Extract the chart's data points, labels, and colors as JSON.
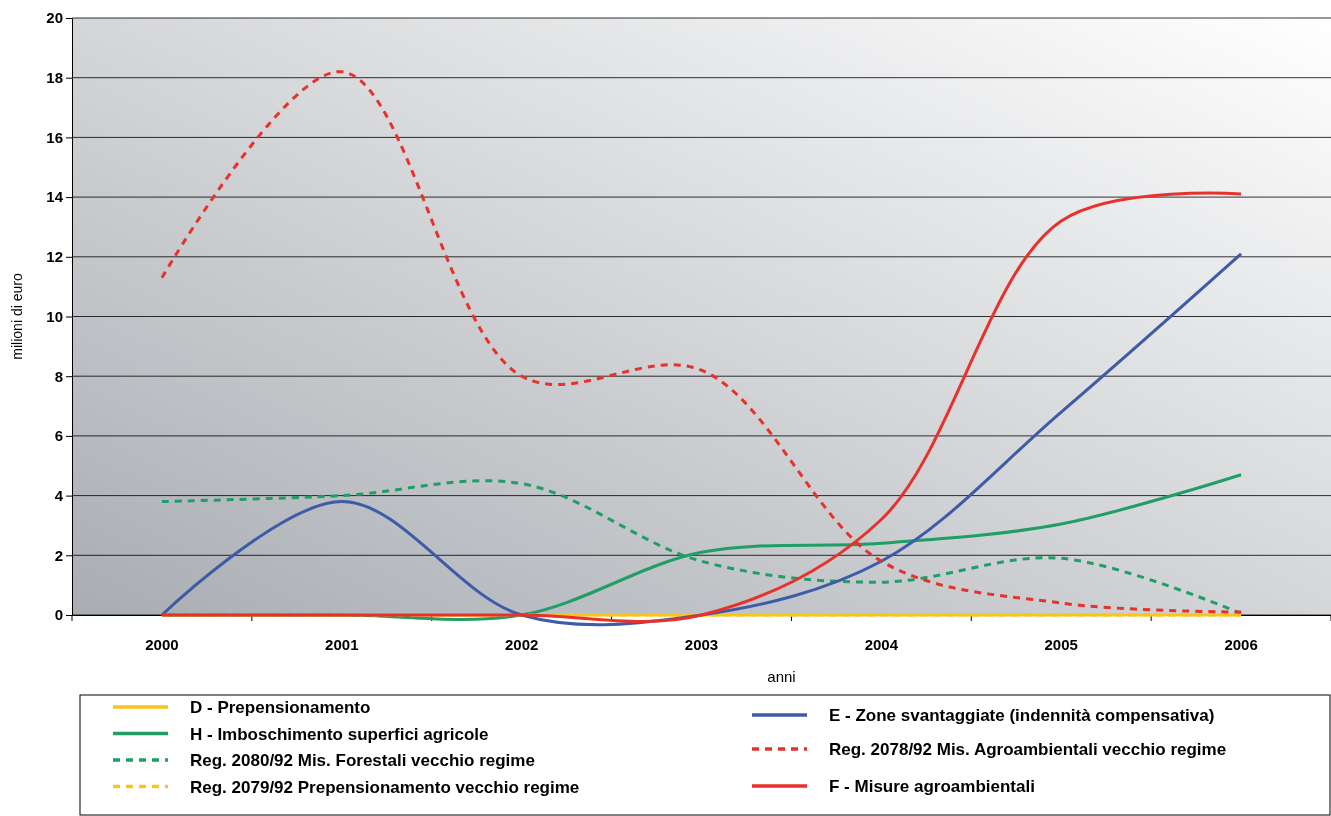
{
  "chart_data": {
    "type": "line",
    "xlabel": "anni",
    "ylabel": "milioni di euro",
    "categories": [
      "2000",
      "2001",
      "2002",
      "2003",
      "2004",
      "2005",
      "2006"
    ],
    "ylim": [
      0,
      20
    ],
    "yticks": [
      0,
      2,
      4,
      6,
      8,
      10,
      12,
      14,
      16,
      18,
      20
    ],
    "grid": "y",
    "legend": "bottom",
    "marker": "none",
    "series": [
      {
        "name": "D - Prepensionamento",
        "color": "#f7c51e",
        "line_style": "solid",
        "values": [
          0,
          0,
          0,
          0,
          0,
          0,
          0
        ]
      },
      {
        "name": "H - Imboschimento superfici agricole",
        "color": "#1f9e66",
        "line_style": "solid",
        "values": [
          0,
          0,
          0,
          2.1,
          2.4,
          3.05,
          4.7
        ]
      },
      {
        "name": "Reg. 2080/92 Mis. Forestali vecchio regime",
        "color": "#1f9e66",
        "line_style": "dashed",
        "values": [
          3.8,
          4.0,
          4.4,
          1.8,
          1.1,
          1.9,
          0.05
        ]
      },
      {
        "name": "Reg. 2079/92 Prepensionamento vecchio regime",
        "color": "#f7c51e",
        "line_style": "dashed",
        "values": [
          0,
          0,
          0,
          0,
          0,
          0,
          0
        ]
      },
      {
        "name": "E - Zone svantaggiate (indennità compensativa)",
        "color": "#3d5ca8",
        "line_style": "solid",
        "values": [
          0,
          3.8,
          0,
          0,
          1.8,
          6.8,
          12.1
        ]
      },
      {
        "name": "Reg. 2078/92 Mis. Agroambientali vecchio regime",
        "color": "#e8312b",
        "line_style": "dashed",
        "values": [
          11.3,
          18.2,
          8.0,
          8.2,
          1.8,
          0.4,
          0.1
        ]
      },
      {
        "name": "F - Misure agroambientali",
        "color": "#e8312b",
        "line_style": "solid",
        "values": [
          0,
          0,
          0,
          0,
          3.2,
          13.2,
          14.1
        ]
      }
    ]
  }
}
